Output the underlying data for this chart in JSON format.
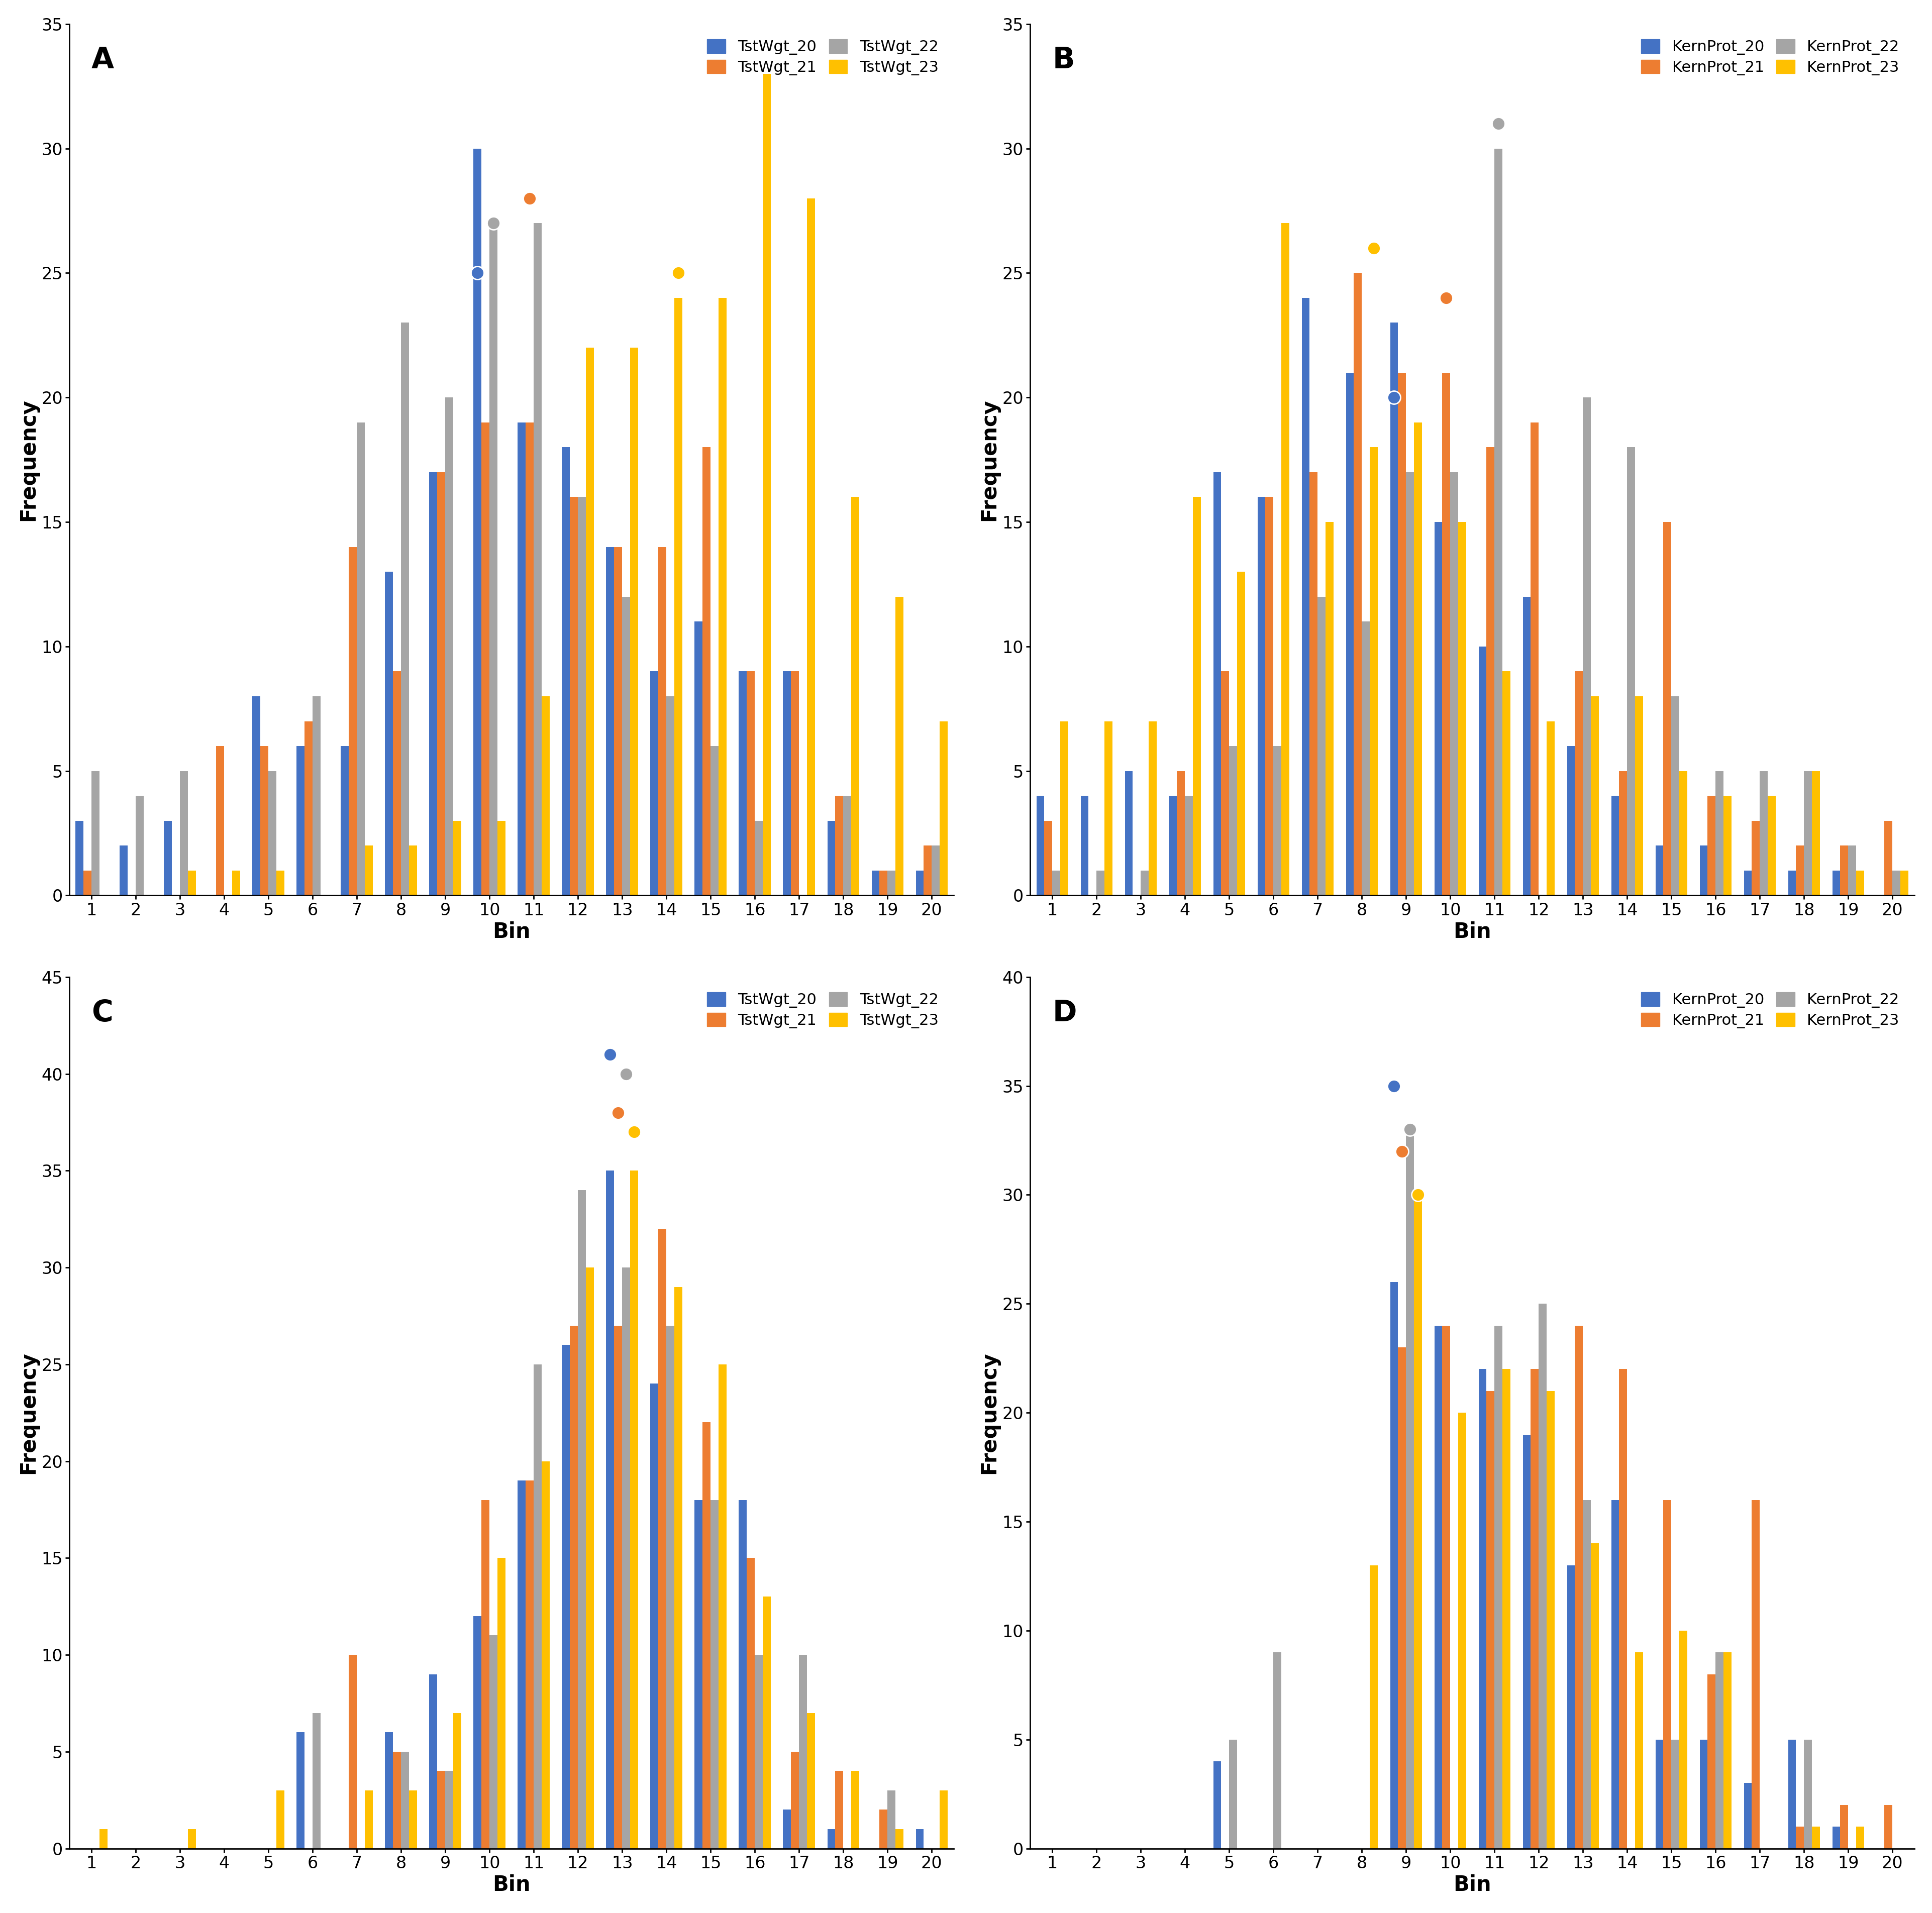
{
  "panel_A": {
    "label": "A",
    "series_labels": [
      "TstWgt_20",
      "TstWgt_21",
      "TstWgt_22",
      "TstWgt_23"
    ],
    "colors": [
      "#4472C4",
      "#ED7D31",
      "#A5A5A5",
      "#FFC000"
    ],
    "ylim": [
      0,
      35
    ],
    "yticks": [
      0,
      5,
      10,
      15,
      20,
      25,
      30,
      35
    ],
    "data": [
      [
        3,
        2,
        3,
        0,
        8,
        6,
        6,
        13,
        17,
        30,
        19,
        18,
        14,
        9,
        11,
        9,
        9,
        3,
        1,
        1
      ],
      [
        1,
        0,
        0,
        6,
        6,
        7,
        14,
        9,
        17,
        19,
        19,
        16,
        14,
        14,
        18,
        9,
        9,
        4,
        1,
        2
      ],
      [
        5,
        4,
        5,
        0,
        5,
        8,
        19,
        23,
        20,
        27,
        27,
        16,
        12,
        8,
        6,
        3,
        0,
        4,
        1,
        2
      ],
      [
        0,
        0,
        1,
        1,
        1,
        0,
        2,
        2,
        3,
        3,
        8,
        22,
        22,
        24,
        24,
        33,
        28,
        16,
        12,
        7
      ]
    ],
    "circle_markers": [
      {
        "bin": 10,
        "series": 0,
        "value": 25,
        "color": "#4472C4"
      },
      {
        "bin": 10,
        "series": 2,
        "value": 27,
        "color": "#A5A5A5"
      },
      {
        "bin": 11,
        "series": 1,
        "value": 28,
        "color": "#ED7D31"
      },
      {
        "bin": 14,
        "series": 3,
        "value": 25,
        "color": "#FFC000"
      }
    ]
  },
  "panel_B": {
    "label": "B",
    "series_labels": [
      "KernProt_20",
      "KernProt_21",
      "KernProt_22",
      "KernProt_23"
    ],
    "colors": [
      "#4472C4",
      "#ED7D31",
      "#A5A5A5",
      "#FFC000"
    ],
    "ylim": [
      0,
      35
    ],
    "yticks": [
      0,
      5,
      10,
      15,
      20,
      25,
      30,
      35
    ],
    "data": [
      [
        4,
        4,
        5,
        4,
        17,
        16,
        24,
        21,
        23,
        15,
        10,
        12,
        6,
        4,
        2,
        2,
        1,
        1,
        1,
        0
      ],
      [
        3,
        0,
        0,
        5,
        9,
        16,
        17,
        25,
        21,
        21,
        18,
        19,
        9,
        5,
        15,
        4,
        3,
        2,
        2,
        3
      ],
      [
        1,
        1,
        1,
        4,
        6,
        6,
        12,
        11,
        17,
        17,
        30,
        0,
        20,
        18,
        8,
        5,
        5,
        5,
        2,
        1
      ],
      [
        7,
        7,
        7,
        16,
        13,
        27,
        15,
        18,
        19,
        15,
        9,
        7,
        8,
        8,
        5,
        4,
        4,
        5,
        1,
        1
      ]
    ],
    "circle_markers": [
      {
        "bin": 9,
        "series": 0,
        "value": 20,
        "color": "#4472C4"
      },
      {
        "bin": 10,
        "series": 1,
        "value": 24,
        "color": "#ED7D31"
      },
      {
        "bin": 8,
        "series": 3,
        "value": 26,
        "color": "#FFC000"
      },
      {
        "bin": 11,
        "series": 2,
        "value": 31,
        "color": "#A5A5A5"
      }
    ]
  },
  "panel_C": {
    "label": "C",
    "series_labels": [
      "TstWgt_20",
      "TstWgt_21",
      "TstWgt_22",
      "TstWgt_23"
    ],
    "colors": [
      "#4472C4",
      "#ED7D31",
      "#A5A5A5",
      "#FFC000"
    ],
    "ylim": [
      0,
      45
    ],
    "yticks": [
      0,
      5,
      10,
      15,
      20,
      25,
      30,
      35,
      40,
      45
    ],
    "data": [
      [
        0,
        0,
        0,
        0,
        0,
        6,
        0,
        6,
        9,
        12,
        19,
        26,
        35,
        24,
        18,
        18,
        2,
        1,
        0,
        1
      ],
      [
        0,
        0,
        0,
        0,
        0,
        0,
        10,
        5,
        4,
        18,
        19,
        27,
        27,
        32,
        22,
        15,
        5,
        4,
        2,
        0
      ],
      [
        0,
        0,
        0,
        0,
        0,
        7,
        0,
        5,
        4,
        11,
        25,
        34,
        30,
        27,
        18,
        10,
        10,
        0,
        3,
        0
      ],
      [
        1,
        0,
        1,
        0,
        3,
        0,
        3,
        3,
        7,
        15,
        20,
        30,
        35,
        29,
        25,
        13,
        7,
        4,
        1,
        3
      ]
    ],
    "circle_markers": [
      {
        "bin": 13,
        "series": 0,
        "value": 41,
        "color": "#4472C4"
      },
      {
        "bin": 13,
        "series": 2,
        "value": 40,
        "color": "#A5A5A5"
      },
      {
        "bin": 13,
        "series": 1,
        "value": 38,
        "color": "#ED7D31"
      },
      {
        "bin": 13,
        "series": 3,
        "value": 37,
        "color": "#FFC000"
      }
    ]
  },
  "panel_D": {
    "label": "D",
    "series_labels": [
      "KernProt_20",
      "KernProt_21",
      "KernProt_22",
      "KernProt_23"
    ],
    "colors": [
      "#4472C4",
      "#ED7D31",
      "#A5A5A5",
      "#FFC000"
    ],
    "ylim": [
      0,
      40
    ],
    "yticks": [
      0,
      5,
      10,
      15,
      20,
      25,
      30,
      35,
      40
    ],
    "data": [
      [
        0,
        0,
        0,
        0,
        4,
        0,
        0,
        0,
        26,
        24,
        22,
        19,
        13,
        16,
        5,
        5,
        3,
        5,
        1,
        0
      ],
      [
        0,
        0,
        0,
        0,
        0,
        0,
        0,
        0,
        23,
        24,
        21,
        22,
        24,
        22,
        16,
        8,
        16,
        1,
        2,
        2
      ],
      [
        0,
        0,
        0,
        0,
        5,
        9,
        0,
        0,
        33,
        0,
        24,
        25,
        16,
        0,
        5,
        9,
        0,
        5,
        0,
        0
      ],
      [
        0,
        0,
        0,
        0,
        0,
        0,
        0,
        13,
        30,
        20,
        22,
        21,
        14,
        9,
        10,
        9,
        0,
        1,
        1,
        0
      ]
    ],
    "circle_markers": [
      {
        "bin": 9,
        "series": 0,
        "value": 35,
        "color": "#4472C4"
      },
      {
        "bin": 9,
        "series": 2,
        "value": 33,
        "color": "#A5A5A5"
      },
      {
        "bin": 9,
        "series": 1,
        "value": 32,
        "color": "#ED7D31"
      },
      {
        "bin": 9,
        "series": 3,
        "value": 30,
        "color": "#FFC000"
      }
    ]
  },
  "bar_width": 0.18,
  "xlabel": "Bin",
  "ylabel": "Frequency",
  "circle_size": 350,
  "label_fontsize": 30,
  "tick_fontsize": 24,
  "legend_fontsize": 22,
  "panel_label_fontsize": 42
}
